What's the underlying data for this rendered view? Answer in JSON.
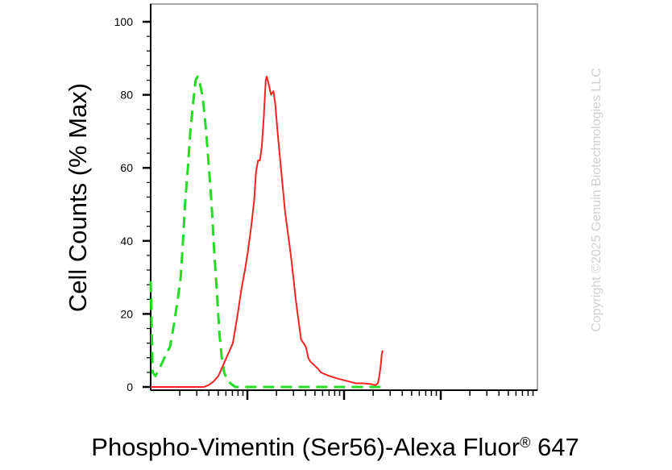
{
  "chart_data": {
    "type": "line",
    "title": "",
    "ylabel": "Cell Counts (% Max)",
    "xlabel_main": "Phospho-Vimentin (Ser56)-Alexa Fluor",
    "xlabel_sup": "®",
    "xlabel_tail": " 647",
    "x_scale": "log",
    "xlim": [
      0,
      800
    ],
    "ylim": [
      0,
      100
    ],
    "yticks": [
      0,
      20,
      40,
      60,
      80,
      100
    ],
    "ytick_labels": [
      "0",
      "20",
      "40",
      "60",
      "80",
      "100"
    ],
    "x_decades": [
      1,
      2,
      3,
      4
    ],
    "watermark": "Copyright ©2025 Genuin Biotechnologies LLC",
    "series": [
      {
        "style": "dashed",
        "color": "#22dd22",
        "points": [
          [
            0,
            29
          ],
          [
            4,
            4
          ],
          [
            10,
            3
          ],
          [
            18,
            5
          ],
          [
            25,
            7
          ],
          [
            32,
            9
          ],
          [
            40,
            11
          ],
          [
            48,
            17
          ],
          [
            56,
            24
          ],
          [
            62,
            30
          ],
          [
            66,
            38
          ],
          [
            71,
            50
          ],
          [
            77,
            60
          ],
          [
            82,
            70
          ],
          [
            88,
            78
          ],
          [
            93,
            84
          ],
          [
            97,
            85
          ],
          [
            102,
            83
          ],
          [
            108,
            79
          ],
          [
            114,
            71
          ],
          [
            120,
            61
          ],
          [
            126,
            50
          ],
          [
            131,
            38
          ],
          [
            137,
            26
          ],
          [
            142,
            15
          ],
          [
            147,
            8
          ],
          [
            152,
            4
          ],
          [
            158,
            2
          ],
          [
            165,
            1
          ],
          [
            175,
            0
          ],
          [
            200,
            0
          ],
          [
            300,
            0
          ],
          [
            400,
            0
          ],
          [
            470,
            0
          ],
          [
            484,
            0
          ]
        ]
      },
      {
        "style": "solid",
        "color": "#ff2222",
        "points": [
          [
            0,
            0
          ],
          [
            100,
            0
          ],
          [
            110,
            0
          ],
          [
            120,
            0.5
          ],
          [
            130,
            1.5
          ],
          [
            140,
            3
          ],
          [
            150,
            6
          ],
          [
            160,
            9
          ],
          [
            170,
            12
          ],
          [
            180,
            20
          ],
          [
            188,
            27
          ],
          [
            195,
            32
          ],
          [
            201,
            37
          ],
          [
            208,
            44
          ],
          [
            214,
            51
          ],
          [
            218,
            59
          ],
          [
            222,
            62
          ],
          [
            226,
            62
          ],
          [
            230,
            66
          ],
          [
            234,
            74
          ],
          [
            238,
            84
          ],
          [
            240,
            85
          ],
          [
            244,
            83
          ],
          [
            249,
            80
          ],
          [
            254,
            81
          ],
          [
            258,
            77
          ],
          [
            263,
            69
          ],
          [
            268,
            62
          ],
          [
            273,
            55
          ],
          [
            278,
            48
          ],
          [
            284,
            42
          ],
          [
            290,
            36
          ],
          [
            296,
            29
          ],
          [
            300,
            24
          ],
          [
            306,
            18
          ],
          [
            311,
            13
          ],
          [
            316,
            12
          ],
          [
            321,
            11
          ],
          [
            326,
            8
          ],
          [
            330,
            7
          ],
          [
            338,
            6
          ],
          [
            346,
            5
          ],
          [
            352,
            4
          ],
          [
            360,
            3.5
          ],
          [
            370,
            3
          ],
          [
            382,
            2.5
          ],
          [
            395,
            2
          ],
          [
            410,
            1.5
          ],
          [
            425,
            1
          ],
          [
            440,
            1
          ],
          [
            455,
            0.8
          ],
          [
            465,
            0.5
          ],
          [
            470,
            1
          ],
          [
            473,
            3
          ],
          [
            476,
            6
          ],
          [
            478,
            9
          ],
          [
            480,
            10
          ]
        ]
      }
    ]
  }
}
